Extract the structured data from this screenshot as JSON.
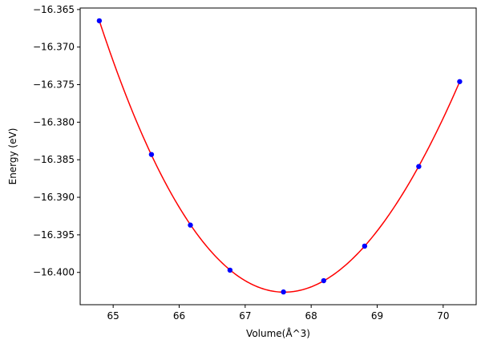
{
  "chart_data": {
    "type": "scatter",
    "title": "",
    "xlabel": "Volume(Å^3)",
    "ylabel": "Energy (eV)",
    "xlim": [
      64.5,
      70.5
    ],
    "ylim": [
      -16.4043,
      -16.3648
    ],
    "x_ticks": [
      65,
      66,
      67,
      68,
      69,
      70
    ],
    "x_tick_labels": [
      "65",
      "66",
      "67",
      "68",
      "69",
      "70"
    ],
    "y_ticks": [
      -16.365,
      -16.37,
      -16.375,
      -16.38,
      -16.385,
      -16.39,
      -16.395,
      -16.4
    ],
    "y_tick_labels": [
      "−16.365",
      "−16.370",
      "−16.375",
      "−16.380",
      "−16.385",
      "−16.390",
      "−16.395",
      "−16.400"
    ],
    "grid": false,
    "series": [
      {
        "kind": "points",
        "color": "#0000ff",
        "x": [
          64.79,
          65.58,
          66.17,
          66.77,
          67.58,
          68.19,
          68.81,
          69.63,
          70.25
        ],
        "y": [
          -16.3665,
          -16.3843,
          -16.3937,
          -16.3997,
          -16.4026,
          -16.4011,
          -16.3965,
          -16.3859,
          -16.3746
        ]
      },
      {
        "kind": "fit-curve",
        "color": "#ff0000",
        "x_range": [
          64.79,
          70.25
        ]
      }
    ]
  }
}
